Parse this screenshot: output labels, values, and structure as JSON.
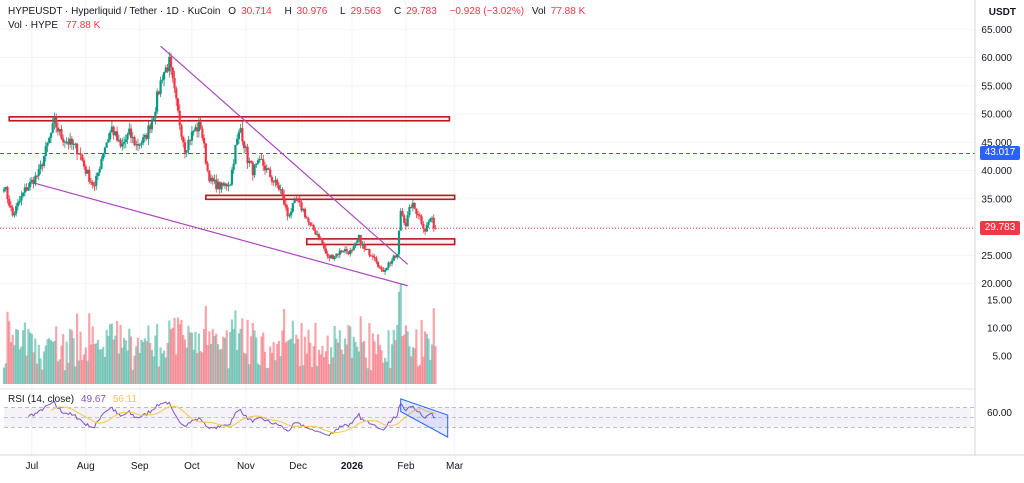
{
  "header": {
    "symbol_line": "HYPEUSDT · Hyperliquid / Tether · 1D · KuCoin",
    "o_label": "O",
    "o_value": "30.714",
    "h_label": "H",
    "h_value": "30.976",
    "l_label": "L",
    "l_value": "29.563",
    "c_label": "C",
    "c_value": "29.783",
    "change": "−0.928 (−3.02%)",
    "vol_label": "Vol",
    "vol_value": "77.88 K",
    "vol_line_label": "Vol · HYPE",
    "vol_line_value": "77.88 K"
  },
  "price_axis_unit": "USDT",
  "rsi_legend": {
    "label": "RSI (14, close)",
    "value1": "49.67",
    "value2": "56.11"
  },
  "price_tags": {
    "dashed_level": "43.017",
    "last_price": "29.783"
  },
  "colors": {
    "up": "#089981",
    "down": "#f23645",
    "level_line": "#2962ff",
    "trendline": "#ab47bc",
    "zone": "#b71c1c",
    "rsi": "#7e57c2",
    "rsi_ma": "#f2c94c"
  },
  "chart_data": [
    {
      "type": "candlestick",
      "title": "HYPEUSDT · Hyperliquid / Tether · 1D · KuCoin",
      "x_ticks": [
        "Jul",
        "Aug",
        "Sep",
        "Oct",
        "Nov",
        "Dec",
        "2026",
        "Feb",
        "Mar"
      ],
      "y_ticks": [
        65.0,
        60.0,
        55.0,
        50.0,
        45.0,
        40.0,
        35.0,
        30.0,
        25.0,
        20.0
      ],
      "ylim": [
        19.0,
        66.0
      ],
      "grid": true,
      "close_anchors": [
        [
          "2025-06-15",
          37.5
        ],
        [
          "2025-06-20",
          32.0
        ],
        [
          "2025-06-27",
          36.5
        ],
        [
          "2025-07-05",
          39.5
        ],
        [
          "2025-07-14",
          48.5
        ],
        [
          "2025-07-18",
          46.0
        ],
        [
          "2025-07-28",
          43.5
        ],
        [
          "2025-08-01",
          40.0
        ],
        [
          "2025-08-06",
          37.0
        ],
        [
          "2025-08-11",
          43.5
        ],
        [
          "2025-08-16",
          47.5
        ],
        [
          "2025-08-21",
          44.0
        ],
        [
          "2025-08-26",
          46.5
        ],
        [
          "2025-08-30",
          44.5
        ],
        [
          "2025-09-04",
          45.5
        ],
        [
          "2025-09-09",
          50.0
        ],
        [
          "2025-09-14",
          57.0
        ],
        [
          "2025-09-18",
          59.0
        ],
        [
          "2025-09-23",
          50.0
        ],
        [
          "2025-09-27",
          44.0
        ],
        [
          "2025-10-02",
          47.0
        ],
        [
          "2025-10-06",
          48.0
        ],
        [
          "2025-10-10",
          40.0
        ],
        [
          "2025-10-12",
          38.0
        ],
        [
          "2025-10-18",
          37.0
        ],
        [
          "2025-10-23",
          38.0
        ],
        [
          "2025-10-26",
          44.0
        ],
        [
          "2025-10-29",
          47.5
        ],
        [
          "2025-11-02",
          42.0
        ],
        [
          "2025-11-05",
          40.0
        ],
        [
          "2025-11-10",
          41.5
        ],
        [
          "2025-11-16",
          38.5
        ],
        [
          "2025-11-21",
          36.5
        ],
        [
          "2025-11-25",
          32.0
        ],
        [
          "2025-11-30",
          34.5
        ],
        [
          "2025-12-04",
          33.0
        ],
        [
          "2025-12-08",
          30.0
        ],
        [
          "2025-12-13",
          28.5
        ],
        [
          "2025-12-18",
          24.5
        ],
        [
          "2025-12-22",
          25.0
        ],
        [
          "2025-12-27",
          26.0
        ],
        [
          "2026-01-01",
          25.5
        ],
        [
          "2026-01-05",
          28.0
        ],
        [
          "2026-01-08",
          26.0
        ],
        [
          "2026-01-14",
          25.0
        ],
        [
          "2026-01-18",
          22.0
        ],
        [
          "2026-01-22",
          23.5
        ],
        [
          "2026-01-27",
          25.0
        ],
        [
          "2026-01-29",
          33.0
        ],
        [
          "2026-02-01",
          30.5
        ],
        [
          "2026-02-04",
          34.0
        ],
        [
          "2026-02-08",
          32.5
        ],
        [
          "2026-02-12",
          29.5
        ],
        [
          "2026-02-15",
          31.5
        ],
        [
          "2026-02-18",
          29.8
        ]
      ],
      "horizontal_zones": [
        [
          48.8,
          49.5
        ],
        [
          34.9,
          35.6
        ],
        [
          26.9,
          27.9
        ]
      ],
      "dashed_level": 43.017,
      "last_price": 29.783
    },
    {
      "type": "bar",
      "title": "Vol · HYPE",
      "y_ticks": [
        "15.00",
        "10.00",
        "5.00"
      ],
      "ylim": [
        0,
        19
      ]
    },
    {
      "type": "line",
      "title": "RSI (14, close)",
      "series": [
        {
          "name": "RSI",
          "value": 49.67
        },
        {
          "value": 56.11
        }
      ],
      "y_ticks": [
        "60.00"
      ],
      "band": [
        30,
        70
      ]
    }
  ]
}
